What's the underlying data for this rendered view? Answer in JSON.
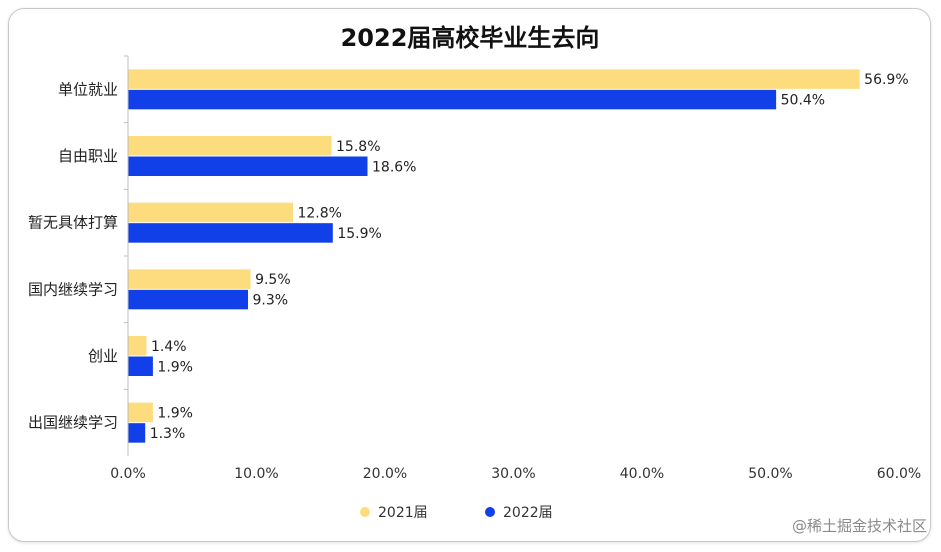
{
  "chart_data": {
    "type": "bar",
    "orientation": "horizontal",
    "title": "2022届高校毕业生去向",
    "categories": [
      "单位就业",
      "自由职业",
      "暂无具体打算",
      "国内继续学习",
      "创业",
      "出国继续学习"
    ],
    "series": [
      {
        "name": "2021届",
        "color": "#FCDC7C",
        "values": [
          56.9,
          15.8,
          12.8,
          9.5,
          1.4,
          1.9
        ],
        "labels": [
          "56.9%",
          "15.8%",
          "12.8%",
          "9.5%",
          "1.4%",
          "1.9%"
        ]
      },
      {
        "name": "2022届",
        "color": "#1240E8",
        "values": [
          50.4,
          18.6,
          15.9,
          9.3,
          1.9,
          1.3
        ],
        "labels": [
          "50.4%",
          "18.6%",
          "15.9%",
          "9.3%",
          "1.9%",
          "1.3%"
        ]
      }
    ],
    "xlim": [
      0,
      60
    ],
    "x_ticks": [
      "0.0%",
      "10.0%",
      "20.0%",
      "30.0%",
      "40.0%",
      "50.0%",
      "60.0%"
    ],
    "grid": false,
    "legend_position": "bottom"
  },
  "watermark": "@稀土掘金技术社区"
}
